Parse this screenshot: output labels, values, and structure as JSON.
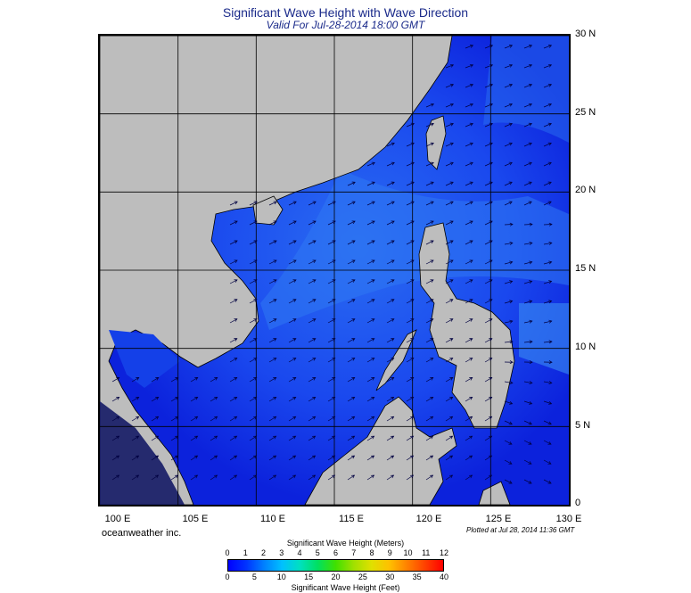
{
  "header": {
    "title": "Significant Wave Height with Wave Direction",
    "subtitle": "Valid For Jul-28-2014 18:00 GMT"
  },
  "map": {
    "lat_labels": [
      "30 N",
      "25 N",
      "20 N",
      "15 N",
      "10 N",
      "5 N",
      "0"
    ],
    "lon_labels": [
      "100 E",
      "105 E",
      "110 E",
      "115 E",
      "120 E",
      "125 E",
      "130 E"
    ],
    "colors": {
      "land": "#bdbdbd",
      "ocean_low": "#0a18d8",
      "ocean_mid": "#1a4cf0",
      "ocean_high": "#2f7df0",
      "grid": "#000000"
    }
  },
  "footer": {
    "credit": "oceanweather inc.",
    "plotted": "Plotted at Jul 28, 2014 11:36 GMT"
  },
  "colorbar": {
    "title_meters": "Significant Wave Height (Meters)",
    "title_feet": "Significant Wave Height (Feet)",
    "meters_ticks": [
      "0",
      "1",
      "2",
      "3",
      "4",
      "5",
      "6",
      "7",
      "8",
      "9",
      "10",
      "11",
      "12"
    ],
    "feet_ticks": [
      "0",
      "5",
      "10",
      "15",
      "20",
      "25",
      "30",
      "35",
      "40"
    ],
    "colors": [
      "#0000ff",
      "#0033ff",
      "#0080ff",
      "#00c0ff",
      "#00e0c0",
      "#00e060",
      "#40e000",
      "#a0e000",
      "#e0e000",
      "#ffc000",
      "#ff8000",
      "#ff4000",
      "#ff0000"
    ]
  }
}
